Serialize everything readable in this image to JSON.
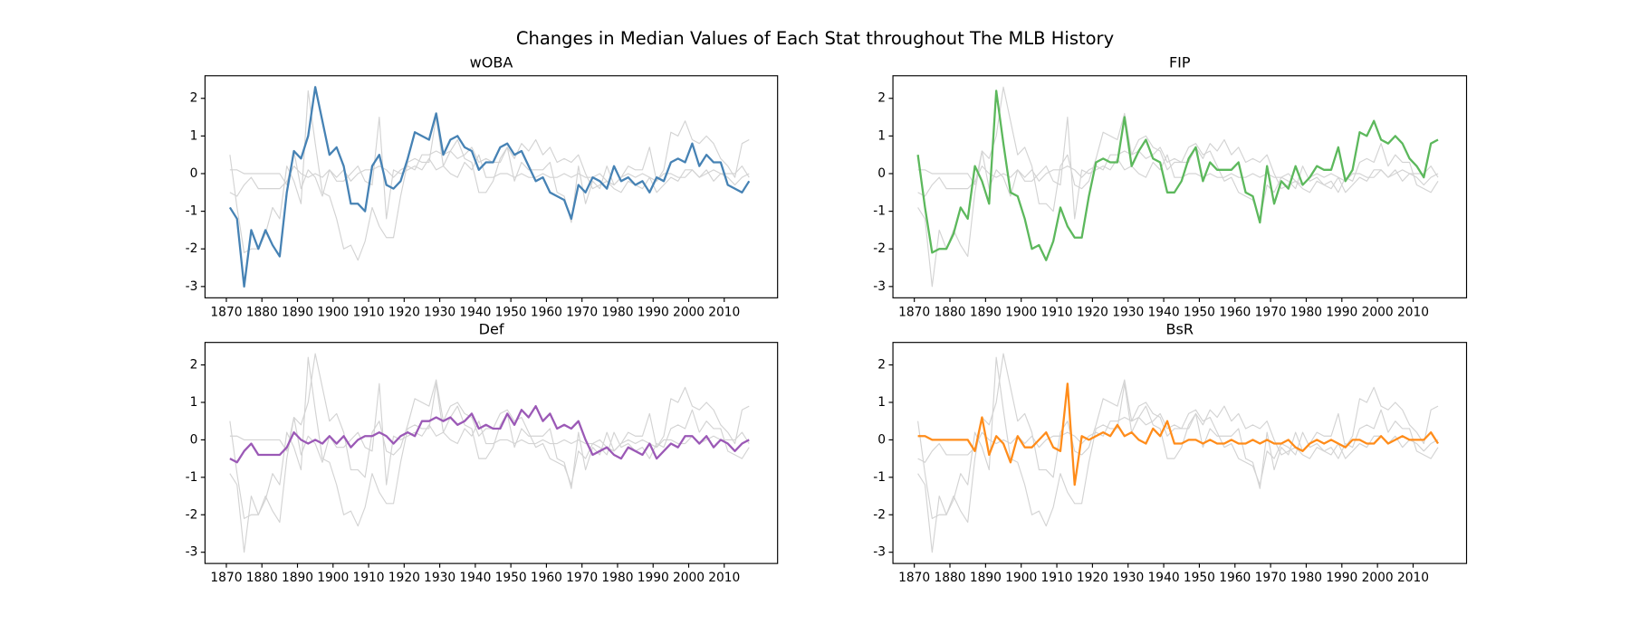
{
  "chart_data": {
    "type": "line",
    "title": "Changes in Median Values of Each Stat throughout The MLB History",
    "x": [
      1871,
      1873,
      1875,
      1877,
      1879,
      1881,
      1883,
      1885,
      1887,
      1889,
      1891,
      1893,
      1895,
      1897,
      1899,
      1901,
      1903,
      1905,
      1907,
      1909,
      1911,
      1913,
      1915,
      1917,
      1919,
      1921,
      1923,
      1925,
      1927,
      1929,
      1931,
      1933,
      1935,
      1937,
      1939,
      1941,
      1943,
      1945,
      1947,
      1949,
      1951,
      1953,
      1955,
      1957,
      1959,
      1961,
      1963,
      1965,
      1967,
      1969,
      1971,
      1973,
      1975,
      1977,
      1979,
      1981,
      1983,
      1985,
      1987,
      1989,
      1991,
      1993,
      1995,
      1997,
      1999,
      2001,
      2003,
      2005,
      2007,
      2009,
      2011,
      2013,
      2015,
      2017
    ],
    "series": [
      {
        "name": "wOBA",
        "color": "#4682b4",
        "values": [
          -0.9,
          -1.2,
          -3.0,
          -1.5,
          -2.0,
          -1.5,
          -1.9,
          -2.2,
          -0.5,
          0.6,
          0.4,
          1.0,
          2.3,
          1.4,
          0.5,
          0.7,
          0.2,
          -0.8,
          -0.8,
          -1.0,
          0.2,
          0.5,
          -0.3,
          -0.4,
          -0.2,
          0.4,
          1.1,
          1.0,
          0.9,
          1.6,
          0.5,
          0.9,
          1.0,
          0.7,
          0.6,
          0.1,
          0.3,
          0.3,
          0.7,
          0.8,
          0.5,
          0.6,
          0.2,
          -0.2,
          -0.1,
          -0.5,
          -0.6,
          -0.7,
          -1.2,
          -0.3,
          -0.5,
          -0.1,
          -0.2,
          -0.4,
          0.2,
          -0.2,
          -0.1,
          -0.3,
          -0.2,
          -0.5,
          -0.1,
          -0.2,
          0.3,
          0.4,
          0.3,
          0.8,
          0.2,
          0.5,
          0.3,
          0.3,
          -0.3,
          -0.4,
          -0.5,
          -0.2
        ]
      },
      {
        "name": "FIP",
        "color": "#5cb85c",
        "values": [
          0.5,
          -0.9,
          -2.1,
          -2.0,
          -2.0,
          -1.6,
          -0.9,
          -1.2,
          0.2,
          -0.2,
          -0.8,
          2.2,
          0.8,
          -0.5,
          -0.6,
          -1.2,
          -2.0,
          -1.9,
          -2.3,
          -1.8,
          -0.9,
          -1.4,
          -1.7,
          -1.7,
          -0.6,
          0.3,
          0.4,
          0.3,
          0.3,
          1.5,
          0.2,
          0.6,
          0.9,
          0.4,
          0.3,
          -0.5,
          -0.5,
          -0.2,
          0.4,
          0.7,
          -0.2,
          0.3,
          0.1,
          0.1,
          0.1,
          0.3,
          -0.5,
          -0.6,
          -1.3,
          0.2,
          -0.8,
          -0.2,
          -0.4,
          0.2,
          -0.3,
          -0.1,
          0.2,
          0.1,
          0.1,
          0.7,
          -0.2,
          0.1,
          1.1,
          1.0,
          1.4,
          0.9,
          0.8,
          1.0,
          0.8,
          0.4,
          0.2,
          -0.1,
          0.8,
          0.9
        ]
      },
      {
        "name": "Def",
        "color": "#9b59b6",
        "values": [
          -0.5,
          -0.6,
          -0.3,
          -0.1,
          -0.4,
          -0.4,
          -0.4,
          -0.4,
          -0.2,
          0.2,
          0.0,
          -0.1,
          0.0,
          -0.1,
          0.1,
          -0.1,
          0.1,
          -0.2,
          0.0,
          0.1,
          0.1,
          0.2,
          0.1,
          -0.1,
          0.1,
          0.2,
          0.1,
          0.5,
          0.5,
          0.6,
          0.5,
          0.6,
          0.4,
          0.5,
          0.7,
          0.3,
          0.4,
          0.3,
          0.3,
          0.7,
          0.4,
          0.8,
          0.6,
          0.9,
          0.5,
          0.7,
          0.3,
          0.4,
          0.3,
          0.5,
          0.0,
          -0.4,
          -0.3,
          -0.2,
          -0.4,
          -0.5,
          -0.2,
          -0.3,
          -0.4,
          -0.1,
          -0.5,
          -0.3,
          -0.1,
          -0.2,
          0.1,
          0.1,
          -0.1,
          0.1,
          -0.2,
          0.0,
          -0.1,
          -0.3,
          -0.1,
          0.0
        ]
      },
      {
        "name": "BsR",
        "color": "#ff8c1a",
        "values": [
          0.1,
          0.1,
          0.0,
          0.0,
          0.0,
          0.0,
          0.0,
          0.0,
          -0.3,
          0.6,
          -0.4,
          0.1,
          -0.1,
          -0.6,
          0.1,
          -0.2,
          -0.2,
          0.0,
          0.2,
          -0.2,
          -0.3,
          1.5,
          -1.2,
          0.1,
          0.0,
          0.1,
          0.2,
          0.1,
          0.4,
          0.1,
          0.2,
          0.0,
          -0.1,
          0.3,
          0.1,
          0.5,
          -0.1,
          -0.1,
          0.0,
          0.0,
          -0.1,
          0.0,
          -0.1,
          -0.1,
          0.0,
          -0.1,
          -0.1,
          0.0,
          -0.1,
          0.0,
          -0.1,
          -0.1,
          0.0,
          -0.2,
          -0.3,
          -0.1,
          0.0,
          -0.1,
          0.0,
          -0.1,
          -0.2,
          0.0,
          0.0,
          -0.1,
          -0.1,
          0.1,
          -0.1,
          0.0,
          0.1,
          0.0,
          0.0,
          0.0,
          0.2,
          -0.1
        ]
      }
    ],
    "muted_color": "#d3d3d3",
    "xlim": [
      1864,
      2025
    ],
    "xticks": [
      1870,
      1880,
      1890,
      1900,
      1910,
      1920,
      1930,
      1940,
      1950,
      1960,
      1970,
      1980,
      1990,
      2000,
      2010
    ],
    "ylim": [
      -3.3,
      2.6
    ],
    "yticks": [
      -3,
      -2,
      -1,
      0,
      1,
      2
    ]
  }
}
